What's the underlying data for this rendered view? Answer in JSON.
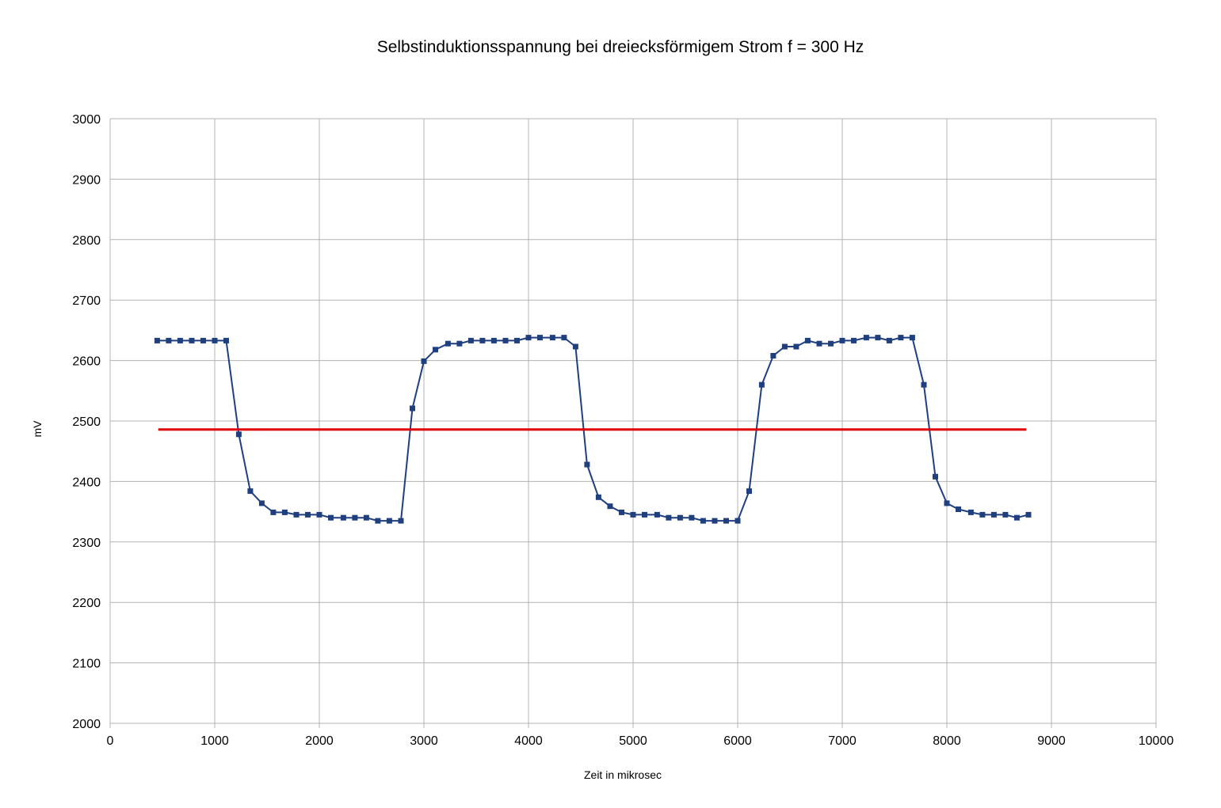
{
  "chart_data": {
    "type": "line",
    "title": "Selbstinduktionsspannung bei dreiecksförmigem Strom f = 300 Hz",
    "xlabel": "Zeit in mikrosec",
    "ylabel": "mV",
    "xlim": [
      0,
      10000
    ],
    "ylim": [
      2000,
      3000
    ],
    "x_ticks": [
      0,
      1000,
      2000,
      3000,
      4000,
      5000,
      6000,
      7000,
      8000,
      9000,
      10000
    ],
    "y_ticks": [
      2000,
      2100,
      2200,
      2300,
      2400,
      2500,
      2600,
      2700,
      2800,
      2900,
      3000
    ],
    "grid": true,
    "legend": "none",
    "series": [
      {
        "color": "#1f3f7f",
        "marker": "square",
        "points": [
          [
            450,
            2633
          ],
          [
            560,
            2633
          ],
          [
            670,
            2633
          ],
          [
            780,
            2633
          ],
          [
            890,
            2633
          ],
          [
            1000,
            2633
          ],
          [
            1110,
            2633
          ],
          [
            1230,
            2478
          ],
          [
            1340,
            2384
          ],
          [
            1450,
            2364
          ],
          [
            1560,
            2349
          ],
          [
            1670,
            2349
          ],
          [
            1780,
            2345
          ],
          [
            1890,
            2345
          ],
          [
            2000,
            2345
          ],
          [
            2110,
            2340
          ],
          [
            2230,
            2340
          ],
          [
            2340,
            2340
          ],
          [
            2450,
            2340
          ],
          [
            2560,
            2335
          ],
          [
            2670,
            2335
          ],
          [
            2780,
            2335
          ],
          [
            2890,
            2521
          ],
          [
            3000,
            2599
          ],
          [
            3110,
            2618
          ],
          [
            3230,
            2628
          ],
          [
            3340,
            2628
          ],
          [
            3450,
            2633
          ],
          [
            3560,
            2633
          ],
          [
            3670,
            2633
          ],
          [
            3780,
            2633
          ],
          [
            3890,
            2633
          ],
          [
            4000,
            2638
          ],
          [
            4110,
            2638
          ],
          [
            4230,
            2638
          ],
          [
            4340,
            2638
          ],
          [
            4450,
            2623
          ],
          [
            4560,
            2428
          ],
          [
            4670,
            2374
          ],
          [
            4780,
            2359
          ],
          [
            4890,
            2349
          ],
          [
            5000,
            2345
          ],
          [
            5110,
            2345
          ],
          [
            5230,
            2345
          ],
          [
            5340,
            2340
          ],
          [
            5450,
            2340
          ],
          [
            5560,
            2340
          ],
          [
            5670,
            2335
          ],
          [
            5780,
            2335
          ],
          [
            5890,
            2335
          ],
          [
            6000,
            2335
          ],
          [
            6110,
            2384
          ],
          [
            6230,
            2560
          ],
          [
            6340,
            2608
          ],
          [
            6450,
            2623
          ],
          [
            6560,
            2623
          ],
          [
            6670,
            2633
          ],
          [
            6780,
            2628
          ],
          [
            6890,
            2628
          ],
          [
            7000,
            2633
          ],
          [
            7110,
            2633
          ],
          [
            7230,
            2638
          ],
          [
            7340,
            2638
          ],
          [
            7450,
            2633
          ],
          [
            7560,
            2638
          ],
          [
            7670,
            2638
          ],
          [
            7780,
            2560
          ],
          [
            7890,
            2408
          ],
          [
            8000,
            2364
          ],
          [
            8110,
            2354
          ],
          [
            8230,
            2349
          ],
          [
            8340,
            2345
          ],
          [
            8450,
            2345
          ],
          [
            8560,
            2345
          ],
          [
            8670,
            2340
          ],
          [
            8780,
            2345
          ]
        ]
      },
      {
        "color": "#e00000",
        "marker": "none",
        "points": [
          [
            460,
            2486
          ],
          [
            8760,
            2486
          ]
        ]
      }
    ]
  }
}
